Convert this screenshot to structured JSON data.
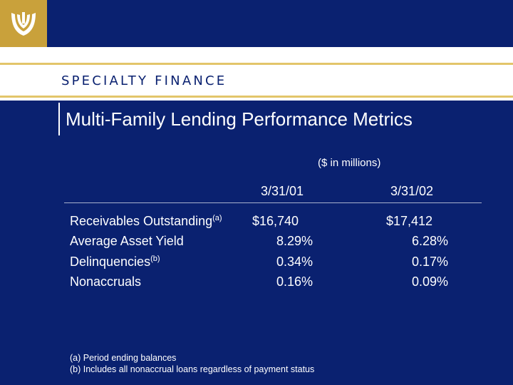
{
  "brand": {
    "logo": "wachovia-shield-logo",
    "accent": "#c9a13b",
    "navy": "#0a2170"
  },
  "header": {
    "section_label": "SPECIALTY FINANCE"
  },
  "title": "Multi-Family Lending Performance Metrics",
  "table": {
    "units": "($ in millions)",
    "columns": [
      "3/31/01",
      "3/31/02"
    ],
    "rows": [
      {
        "label": "Receivables Outstanding",
        "note": "(a)",
        "v1": "$16,740",
        "v2": "$17,412"
      },
      {
        "label": "Average Asset Yield",
        "note": "",
        "v1": "8.29%",
        "v2": "6.28%"
      },
      {
        "label": "Delinquencies",
        "note": "(b)",
        "v1": "0.34%",
        "v2": "0.17%"
      },
      {
        "label": "Nonaccruals",
        "note": "",
        "v1": "0.16%",
        "v2": "0.09%"
      }
    ]
  },
  "footnotes": [
    "(a) Period ending balances",
    "(b) Includes all nonaccrual loans regardless of payment status"
  ]
}
